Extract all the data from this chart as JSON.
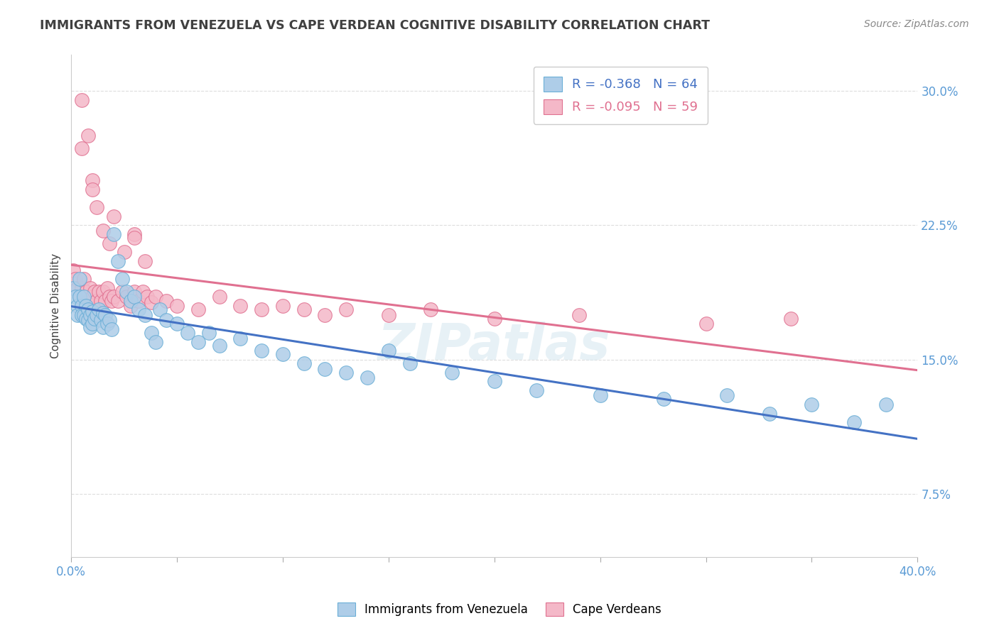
{
  "title": "IMMIGRANTS FROM VENEZUELA VS CAPE VERDEAN COGNITIVE DISABILITY CORRELATION CHART",
  "source": "Source: ZipAtlas.com",
  "ylabel": "Cognitive Disability",
  "xlim": [
    0.0,
    0.4
  ],
  "ylim": [
    0.04,
    0.32
  ],
  "ytick_positions": [
    0.075,
    0.15,
    0.225,
    0.3
  ],
  "yticklabels": [
    "7.5%",
    "15.0%",
    "22.5%",
    "30.0%"
  ],
  "xtick_positions": [
    0.0,
    0.05,
    0.1,
    0.15,
    0.2,
    0.25,
    0.3,
    0.35,
    0.4
  ],
  "xticklabels": [
    "0.0%",
    "",
    "",
    "",
    "",
    "",
    "",
    "",
    "40.0%"
  ],
  "blue_series": {
    "name": "Immigrants from Venezuela",
    "R": -0.368,
    "N": 64,
    "color": "#aecde8",
    "edge_color": "#6aaed6",
    "trend_color": "#4472c4",
    "x": [
      0.001,
      0.002,
      0.003,
      0.003,
      0.004,
      0.004,
      0.005,
      0.005,
      0.006,
      0.006,
      0.007,
      0.007,
      0.008,
      0.008,
      0.009,
      0.009,
      0.01,
      0.01,
      0.011,
      0.012,
      0.013,
      0.014,
      0.015,
      0.015,
      0.016,
      0.017,
      0.018,
      0.019,
      0.02,
      0.022,
      0.024,
      0.026,
      0.028,
      0.03,
      0.032,
      0.035,
      0.038,
      0.04,
      0.042,
      0.045,
      0.05,
      0.055,
      0.06,
      0.065,
      0.07,
      0.08,
      0.09,
      0.1,
      0.11,
      0.12,
      0.13,
      0.14,
      0.15,
      0.16,
      0.18,
      0.2,
      0.22,
      0.25,
      0.28,
      0.31,
      0.33,
      0.35,
      0.37,
      0.385
    ],
    "y": [
      0.19,
      0.185,
      0.18,
      0.175,
      0.195,
      0.185,
      0.18,
      0.175,
      0.185,
      0.175,
      0.18,
      0.173,
      0.178,
      0.172,
      0.175,
      0.168,
      0.177,
      0.17,
      0.173,
      0.175,
      0.178,
      0.172,
      0.176,
      0.168,
      0.175,
      0.17,
      0.172,
      0.167,
      0.22,
      0.205,
      0.195,
      0.188,
      0.183,
      0.185,
      0.178,
      0.175,
      0.165,
      0.16,
      0.178,
      0.172,
      0.17,
      0.165,
      0.16,
      0.165,
      0.158,
      0.162,
      0.155,
      0.153,
      0.148,
      0.145,
      0.143,
      0.14,
      0.155,
      0.148,
      0.143,
      0.138,
      0.133,
      0.13,
      0.128,
      0.13,
      0.12,
      0.125,
      0.115,
      0.125
    ]
  },
  "pink_series": {
    "name": "Cape Verdeans",
    "R": -0.095,
    "N": 59,
    "color": "#f4b8c8",
    "edge_color": "#e07090",
    "trend_color": "#e07090",
    "x": [
      0.001,
      0.002,
      0.003,
      0.004,
      0.005,
      0.006,
      0.007,
      0.008,
      0.009,
      0.01,
      0.011,
      0.012,
      0.013,
      0.014,
      0.015,
      0.016,
      0.017,
      0.018,
      0.019,
      0.02,
      0.022,
      0.024,
      0.026,
      0.028,
      0.03,
      0.032,
      0.034,
      0.036,
      0.038,
      0.04,
      0.045,
      0.05,
      0.06,
      0.07,
      0.08,
      0.09,
      0.1,
      0.11,
      0.12,
      0.13,
      0.15,
      0.17,
      0.2,
      0.24,
      0.3,
      0.34,
      0.005,
      0.008,
      0.01,
      0.012,
      0.015,
      0.018,
      0.025,
      0.03,
      0.035,
      0.005,
      0.01,
      0.02,
      0.03
    ],
    "y": [
      0.2,
      0.195,
      0.19,
      0.185,
      0.19,
      0.195,
      0.188,
      0.183,
      0.19,
      0.185,
      0.188,
      0.183,
      0.188,
      0.183,
      0.188,
      0.183,
      0.19,
      0.185,
      0.183,
      0.185,
      0.183,
      0.188,
      0.185,
      0.18,
      0.188,
      0.183,
      0.188,
      0.185,
      0.182,
      0.185,
      0.183,
      0.18,
      0.178,
      0.185,
      0.18,
      0.178,
      0.18,
      0.178,
      0.175,
      0.178,
      0.175,
      0.178,
      0.173,
      0.175,
      0.17,
      0.173,
      0.295,
      0.275,
      0.25,
      0.235,
      0.222,
      0.215,
      0.21,
      0.22,
      0.205,
      0.268,
      0.245,
      0.23,
      0.218
    ]
  },
  "legend": {
    "R_blue": -0.368,
    "N_blue": 64,
    "R_pink": -0.095,
    "N_pink": 59
  },
  "watermark": "ZIPatlas",
  "background_color": "#ffffff",
  "grid_color": "#dddddd",
  "title_color": "#404040",
  "tick_color": "#5b9bd5"
}
